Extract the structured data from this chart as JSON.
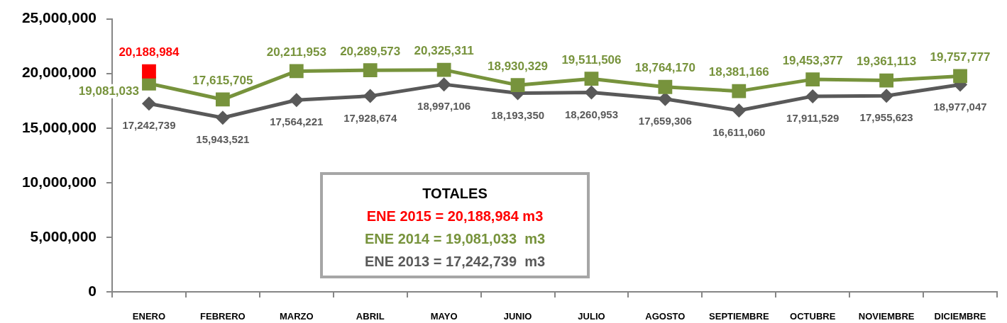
{
  "chart_data": {
    "type": "line",
    "categories": [
      "ENERO",
      "FEBRERO",
      "MARZO",
      "ABRIL",
      "MAYO",
      "JUNIO",
      "JULIO",
      "AGOSTO",
      "SEPTIEMBRE",
      "OCTUBRE",
      "NOVIEMBRE",
      "DICIEMBRE"
    ],
    "series": [
      {
        "color": "#ff0000",
        "values": [
          20188984,
          null,
          null,
          null,
          null,
          null,
          null,
          null,
          null,
          null,
          null,
          null
        ],
        "value_labels": [
          "20,188,984",
          null,
          null,
          null,
          null,
          null,
          null,
          null,
          null,
          null,
          null,
          null
        ]
      },
      {
        "color": "#77933c",
        "values": [
          19081033,
          17615705,
          20211953,
          20289573,
          20325311,
          18930329,
          19511506,
          18764170,
          18381166,
          19453377,
          19361113,
          19757777
        ],
        "value_labels": [
          "19,081,033",
          "17,615,705",
          "20,211,953",
          "20,289,573",
          "20,325,311",
          "18,930,329",
          "19,511,506",
          "18,764,170",
          "18,381,166",
          "19,453,377",
          "19,361,113",
          "19,757,777"
        ]
      },
      {
        "color": "#595959",
        "marker": "diamond",
        "values": [
          17242739,
          15943521,
          17564221,
          17928674,
          18997106,
          18193350,
          18260953,
          17659306,
          16611060,
          17911529,
          17955623,
          18977047
        ],
        "value_labels": [
          "17,242,739",
          "15,943,521",
          "17,564,221",
          "17,928,674",
          "18,997,106",
          "18,193,350",
          "18,260,953",
          "17,659,306",
          "16,611,060",
          "17,911,529",
          "17,955,623",
          "18,977,047"
        ]
      }
    ],
    "ylim": [
      0,
      25000000
    ],
    "yticks": [
      {
        "value": 0,
        "label": "0"
      },
      {
        "value": 5000000,
        "label": "5,000,000"
      },
      {
        "value": 10000000,
        "label": "10,000,000"
      },
      {
        "value": 15000000,
        "label": "15,000,000"
      },
      {
        "value": 20000000,
        "label": "20,000,000"
      },
      {
        "value": 25000000,
        "label": "25,000,000"
      }
    ],
    "marker": "square",
    "grid": false,
    "legend": false,
    "annotations": [
      "TOTALES",
      "ENE 2015 = 20,188,984 m3",
      "ENE 2014 = 19,081,033  m3",
      "ENE 2013 = 17,242,739  m3"
    ]
  }
}
